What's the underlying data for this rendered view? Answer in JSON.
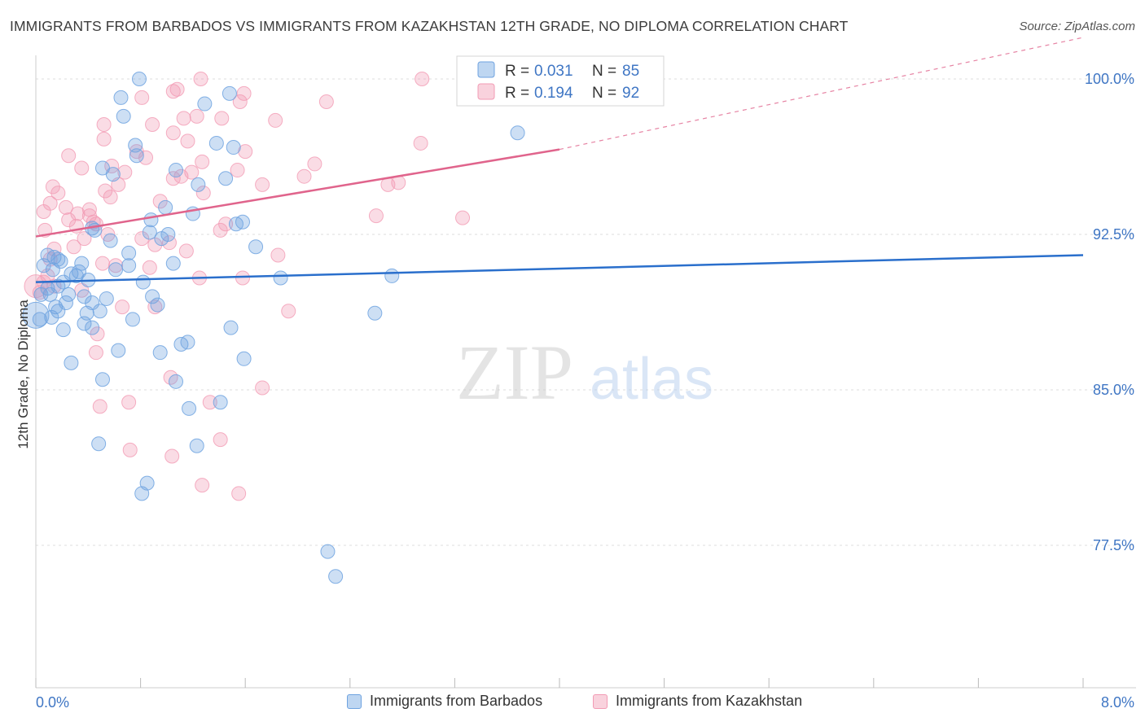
{
  "title": "IMMIGRANTS FROM BARBADOS VS IMMIGRANTS FROM KAZAKHSTAN 12TH GRADE, NO DIPLOMA CORRELATION CHART",
  "source": "Source: ZipAtlas.com",
  "watermark": {
    "zip": "ZIP",
    "atlas": "atlas"
  },
  "colors": {
    "barbados": "#6fa3e0",
    "barbados_line": "#2a6fcc",
    "kazakhstan": "#f29bb4",
    "kazakhstan_line": "#e0648c",
    "axis_text": "#3f76c4"
  },
  "legend_top": {
    "rows": [
      {
        "r_label": "R =",
        "r_value": "0.031",
        "n_label": "N =",
        "n_value": "85"
      },
      {
        "r_label": "R =",
        "r_value": "0.194",
        "n_label": "N =",
        "n_value": "92"
      }
    ]
  },
  "chart_data": {
    "type": "scatter",
    "title": "IMMIGRANTS FROM BARBADOS VS IMMIGRANTS FROM KAZAKHSTAN 12TH GRADE, NO DIPLOMA CORRELATION CHART",
    "xlabel": "",
    "ylabel": "12th Grade, No Diploma",
    "xlim": [
      0,
      8
    ],
    "ylim": [
      70,
      101.5
    ],
    "x_tick_labels": [
      "0.0%",
      "8.0%"
    ],
    "y_ticks": [
      77.5,
      85.0,
      92.5,
      100.0
    ],
    "y_tick_labels": [
      "77.5%",
      "85.0%",
      "92.5%",
      "100.0%"
    ],
    "grid": true,
    "legend_position": "top-center",
    "series": [
      {
        "name": "Immigrants from Barbados",
        "r": 0.031,
        "n": 85,
        "trend": {
          "x": [
            0,
            8
          ],
          "y": [
            90.2,
            91.5
          ],
          "dashed_from_x": null
        },
        "points": [
          [
            0.79,
            100.0
          ],
          [
            0.65,
            99.1
          ],
          [
            0.67,
            98.2
          ],
          [
            1.48,
            99.3
          ],
          [
            1.29,
            98.8
          ],
          [
            0.76,
            96.8
          ],
          [
            1.38,
            96.9
          ],
          [
            1.51,
            96.7
          ],
          [
            0.77,
            96.3
          ],
          [
            0.51,
            95.7
          ],
          [
            0.59,
            95.4
          ],
          [
            1.07,
            95.6
          ],
          [
            1.24,
            94.9
          ],
          [
            0.88,
            93.2
          ],
          [
            1.58,
            93.1
          ],
          [
            1.53,
            93.0
          ],
          [
            0.45,
            92.7
          ],
          [
            1.01,
            92.5
          ],
          [
            0.43,
            92.8
          ],
          [
            0.87,
            92.6
          ],
          [
            1.68,
            91.9
          ],
          [
            0.71,
            91.6
          ],
          [
            0.09,
            91.5
          ],
          [
            0.14,
            91.4
          ],
          [
            0.17,
            91.3
          ],
          [
            0.19,
            91.2
          ],
          [
            0.35,
            91.1
          ],
          [
            0.71,
            91.0
          ],
          [
            1.05,
            91.1
          ],
          [
            0.13,
            90.8
          ],
          [
            0.27,
            90.6
          ],
          [
            0.31,
            90.5
          ],
          [
            0.61,
            90.8
          ],
          [
            0.82,
            90.2
          ],
          [
            1.87,
            90.4
          ],
          [
            2.72,
            90.5
          ],
          [
            0.17,
            90.0
          ],
          [
            0.09,
            89.9
          ],
          [
            0.11,
            89.6
          ],
          [
            0.25,
            89.6
          ],
          [
            0.37,
            89.5
          ],
          [
            0.54,
            89.4
          ],
          [
            0.89,
            89.5
          ],
          [
            0.04,
            89.6
          ],
          [
            0.23,
            89.2
          ],
          [
            0.43,
            89.2
          ],
          [
            0.49,
            88.8
          ],
          [
            0.93,
            89.1
          ],
          [
            0.39,
            88.7
          ],
          [
            2.59,
            88.7
          ],
          [
            0.17,
            88.8
          ],
          [
            0.03,
            88.4
          ],
          [
            0.74,
            88.4
          ],
          [
            0.37,
            88.2
          ],
          [
            0.43,
            88.0
          ],
          [
            1.49,
            88.0
          ],
          [
            0.21,
            87.9
          ],
          [
            1.16,
            87.3
          ],
          [
            1.11,
            87.2
          ],
          [
            0.63,
            86.9
          ],
          [
            0.95,
            86.8
          ],
          [
            1.59,
            86.5
          ],
          [
            0.27,
            86.3
          ],
          [
            0.51,
            85.5
          ],
          [
            1.07,
            85.4
          ],
          [
            1.17,
            84.1
          ],
          [
            1.41,
            84.4
          ],
          [
            0.48,
            82.4
          ],
          [
            1.23,
            82.3
          ],
          [
            0.85,
            80.5
          ],
          [
            0.81,
            80.0
          ],
          [
            3.68,
            97.4
          ],
          [
            2.29,
            76.0
          ],
          [
            2.23,
            77.2
          ],
          [
            0.12,
            88.5
          ],
          [
            0.06,
            91.0
          ],
          [
            0.21,
            90.2
          ],
          [
            0.33,
            90.7
          ],
          [
            0.57,
            92.2
          ],
          [
            0.96,
            92.3
          ],
          [
            1.2,
            93.5
          ],
          [
            1.45,
            95.2
          ],
          [
            0.99,
            93.8
          ],
          [
            0.15,
            89.0
          ],
          [
            0.4,
            90.3
          ]
        ]
      },
      {
        "name": "Immigrants from Kazakhstan",
        "r": 0.194,
        "n": 92,
        "trend": {
          "x": [
            0,
            4.0
          ],
          "y": [
            92.4,
            96.6
          ],
          "dashed_to": [
            8,
            102.0
          ]
        },
        "points": [
          [
            1.26,
            100.0
          ],
          [
            2.95,
            100.0
          ],
          [
            1.08,
            99.5
          ],
          [
            1.05,
            99.4
          ],
          [
            1.59,
            99.3
          ],
          [
            0.81,
            99.1
          ],
          [
            1.56,
            98.9
          ],
          [
            2.22,
            98.9
          ],
          [
            1.23,
            98.2
          ],
          [
            1.13,
            98.1
          ],
          [
            1.42,
            98.1
          ],
          [
            1.83,
            98.0
          ],
          [
            0.52,
            97.8
          ],
          [
            0.89,
            97.8
          ],
          [
            1.05,
            97.4
          ],
          [
            0.52,
            97.1
          ],
          [
            1.16,
            97.0
          ],
          [
            2.94,
            96.9
          ],
          [
            1.6,
            96.5
          ],
          [
            0.25,
            96.3
          ],
          [
            0.84,
            96.2
          ],
          [
            1.27,
            96.0
          ],
          [
            2.13,
            95.9
          ],
          [
            0.58,
            95.8
          ],
          [
            0.35,
            95.7
          ],
          [
            1.54,
            95.6
          ],
          [
            1.19,
            95.5
          ],
          [
            0.68,
            95.5
          ],
          [
            1.11,
            95.3
          ],
          [
            1.05,
            95.2
          ],
          [
            0.63,
            94.9
          ],
          [
            1.73,
            94.9
          ],
          [
            2.69,
            94.9
          ],
          [
            2.77,
            95.0
          ],
          [
            0.13,
            94.8
          ],
          [
            0.17,
            94.5
          ],
          [
            0.53,
            94.6
          ],
          [
            1.28,
            94.5
          ],
          [
            0.57,
            94.3
          ],
          [
            0.11,
            94.0
          ],
          [
            0.23,
            93.8
          ],
          [
            0.41,
            93.7
          ],
          [
            0.06,
            93.6
          ],
          [
            0.32,
            93.5
          ],
          [
            0.41,
            93.4
          ],
          [
            2.6,
            93.4
          ],
          [
            3.26,
            93.3
          ],
          [
            0.25,
            93.2
          ],
          [
            0.44,
            93.1
          ],
          [
            0.46,
            93.0
          ],
          [
            0.31,
            92.9
          ],
          [
            1.41,
            92.7
          ],
          [
            0.07,
            92.7
          ],
          [
            0.55,
            92.5
          ],
          [
            0.81,
            92.3
          ],
          [
            1.02,
            92.1
          ],
          [
            0.91,
            92.0
          ],
          [
            0.29,
            91.9
          ],
          [
            1.15,
            91.7
          ],
          [
            1.85,
            91.5
          ],
          [
            0.11,
            91.3
          ],
          [
            0.51,
            91.1
          ],
          [
            0.61,
            91.0
          ],
          [
            0.87,
            90.9
          ],
          [
            1.25,
            90.4
          ],
          [
            1.58,
            90.4
          ],
          [
            0.06,
            90.2
          ],
          [
            0.14,
            90.0
          ],
          [
            0.35,
            89.8
          ],
          [
            0.03,
            89.7
          ],
          [
            0.66,
            89.0
          ],
          [
            0.91,
            89.0
          ],
          [
            1.93,
            88.8
          ],
          [
            0.47,
            87.7
          ],
          [
            0.46,
            86.8
          ],
          [
            1.03,
            85.6
          ],
          [
            1.73,
            85.1
          ],
          [
            0.49,
            84.2
          ],
          [
            0.71,
            84.4
          ],
          [
            1.33,
            84.4
          ],
          [
            1.41,
            82.6
          ],
          [
            0.72,
            82.1
          ],
          [
            1.04,
            81.8
          ],
          [
            1.27,
            80.4
          ],
          [
            1.55,
            80.0
          ],
          [
            0.14,
            91.8
          ],
          [
            0.09,
            90.5
          ],
          [
            0.77,
            96.5
          ],
          [
            1.45,
            93.0
          ],
          [
            2.05,
            95.3
          ],
          [
            0.37,
            92.3
          ],
          [
            0.95,
            94.1
          ]
        ]
      }
    ]
  }
}
